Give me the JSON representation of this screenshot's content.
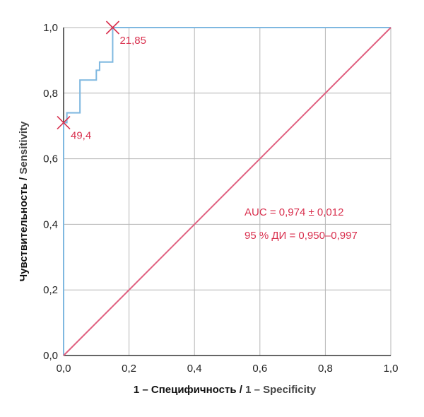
{
  "chart_data": {
    "type": "line",
    "title": "",
    "xlabel_ru": "1 – Специфичность",
    "xlabel_sep": " / ",
    "xlabel_en": "1 – Specificity",
    "ylabel_ru": "Чувствительность",
    "ylabel_sep": " / ",
    "ylabel_en": "Sensitivity",
    "xlim": [
      0,
      1
    ],
    "ylim": [
      0,
      1
    ],
    "x_ticks": [
      0,
      0.2,
      0.4,
      0.6,
      0.8,
      1.0
    ],
    "y_ticks": [
      0,
      0.2,
      0.4,
      0.6,
      0.8,
      1.0
    ],
    "x_tick_labels": [
      "0,0",
      "0,2",
      "0,4",
      "0,6",
      "0,8",
      "1,0"
    ],
    "y_tick_labels": [
      "0,0",
      "0,2",
      "0,4",
      "0,6",
      "0,8",
      "1,0"
    ],
    "grid": true,
    "series": [
      {
        "kind": "roc-curve",
        "color": "#7fb8e0",
        "points": [
          [
            0,
            0
          ],
          [
            0,
            0.71
          ],
          [
            0.01,
            0.71
          ],
          [
            0.01,
            0.74
          ],
          [
            0.05,
            0.74
          ],
          [
            0.05,
            0.84
          ],
          [
            0.1,
            0.84
          ],
          [
            0.1,
            0.87
          ],
          [
            0.11,
            0.87
          ],
          [
            0.11,
            0.895
          ],
          [
            0.15,
            0.895
          ],
          [
            0.15,
            1.0
          ],
          [
            1.0,
            1.0
          ]
        ]
      },
      {
        "kind": "reference-diagonal",
        "color": "#e06080",
        "points": [
          [
            0,
            0
          ],
          [
            1,
            1
          ]
        ]
      }
    ],
    "markers": [
      {
        "x": 0.15,
        "y": 1.0,
        "label": "21,85"
      },
      {
        "x": 0.0,
        "y": 0.71,
        "label": "49,4"
      }
    ],
    "annotations": {
      "auc": "AUC = 0,974 ± 0,012",
      "ci": "95 % ДИ = 0,950–0,997"
    },
    "colors": {
      "accent": "#d9314f",
      "grid": "#b5b5b5",
      "axis": "#333333"
    }
  }
}
